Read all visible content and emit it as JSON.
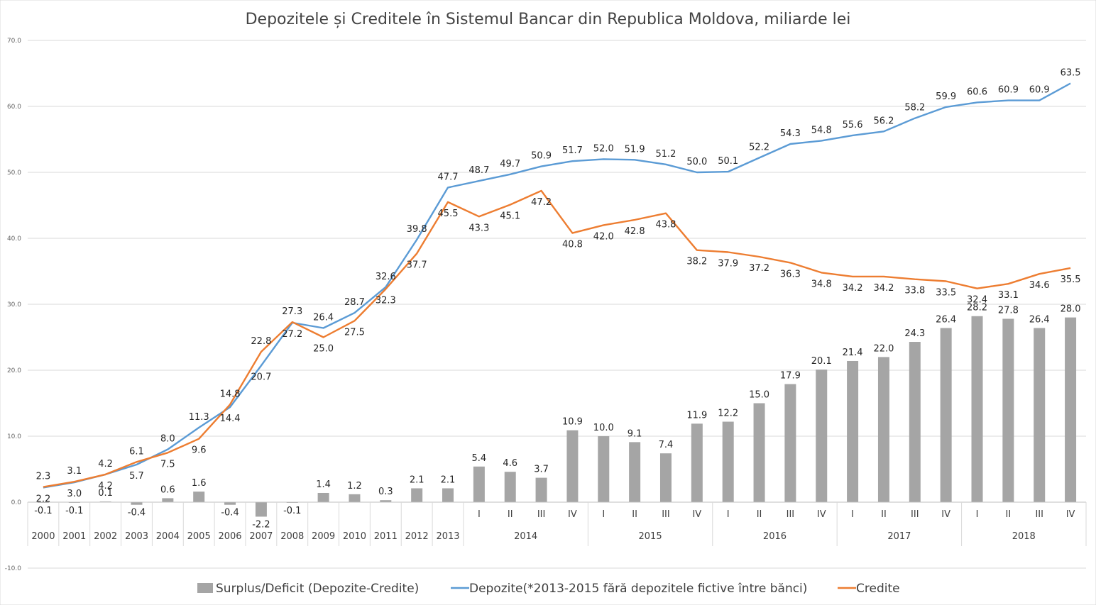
{
  "chart_data": {
    "type": "bar",
    "title": "Depozitele și Creditele în Sistemul Bancar din Republica Moldova, miliarde lei",
    "ylim": [
      -10,
      70
    ],
    "yticks": [
      "-10.0",
      "0.0",
      "10.0",
      "20.0",
      "30.0",
      "40.0",
      "50.0",
      "60.0",
      "70.0"
    ],
    "categories": [
      "2000",
      "2001",
      "2002",
      "2003",
      "2004",
      "2005",
      "2006",
      "2007",
      "2008",
      "2009",
      "2010",
      "2011",
      "2012",
      "2013",
      "I",
      "II",
      "III",
      "IV",
      "I",
      "II",
      "III",
      "IV",
      "I",
      "II",
      "III",
      "IV",
      "I",
      "II",
      "III",
      "IV",
      "I",
      "II",
      "III",
      "IV"
    ],
    "year_groups": [
      {
        "label": "2014",
        "start": 14,
        "end": 17
      },
      {
        "label": "2015",
        "start": 18,
        "end": 21
      },
      {
        "label": "2016",
        "start": 22,
        "end": 25
      },
      {
        "label": "2017",
        "start": 26,
        "end": 29
      },
      {
        "label": "2018",
        "start": 30,
        "end": 33
      }
    ],
    "series": [
      {
        "name": "Surplus/Deficit (Depozite-Credite)",
        "type": "bar",
        "color": "#a5a5a5",
        "values": [
          -0.1,
          -0.1,
          0.1,
          -0.4,
          0.6,
          1.6,
          -0.4,
          -2.2,
          -0.1,
          1.4,
          1.2,
          0.3,
          2.1,
          2.1,
          5.4,
          4.6,
          3.7,
          10.9,
          10.0,
          9.1,
          7.4,
          11.9,
          12.2,
          15.0,
          17.9,
          20.1,
          21.4,
          22.0,
          24.3,
          26.4,
          28.2,
          27.8,
          26.4,
          28.0
        ],
        "labels": [
          "-0.1",
          "-0.1",
          "0.1",
          "-0.4",
          "0.6",
          "1.6",
          "-0.4",
          "-2.2",
          "-0.1",
          "1.4",
          "1.2",
          "0.3",
          "2.1",
          "2.1",
          "5.4",
          "4.6",
          "3.7",
          "10.9",
          "10.0",
          "9.1",
          "7.4",
          "11.9",
          "12.2",
          "15.0",
          "17.9",
          "20.1",
          "21.4",
          "22.0",
          "24.3",
          "26.4",
          "28.2",
          "27.8",
          "26.4",
          "28.0"
        ]
      },
      {
        "name": "Depozite(*2013-2015 fără depozitele fictive între bănci)",
        "type": "line",
        "color": "#5b9bd5",
        "values": [
          2.2,
          3.0,
          4.2,
          5.7,
          8.0,
          11.3,
          14.4,
          20.7,
          27.2,
          26.4,
          28.7,
          32.6,
          39.8,
          47.7,
          48.7,
          49.7,
          50.9,
          51.7,
          52.0,
          51.9,
          51.2,
          50.0,
          50.1,
          52.2,
          54.3,
          54.8,
          55.6,
          56.2,
          58.2,
          59.9,
          60.6,
          60.9,
          60.9,
          63.5
        ],
        "labels": [
          "2.2",
          "3.0",
          "4.2",
          "5.7",
          "8.0",
          "11.3",
          "14.4",
          "20.7",
          "27.2",
          "26.4",
          "28.7",
          "32.6",
          "39.8",
          "47.7",
          "48.7",
          "49.7",
          "50.9",
          "51.7",
          "52.0",
          "51.9",
          "51.2",
          "50.0",
          "50.1",
          "52.2",
          "54.3",
          "54.8",
          "55.6",
          "56.2",
          "58.2",
          "59.9",
          "60.6",
          "60.9",
          "60.9",
          "63.5"
        ]
      },
      {
        "name": "Credite",
        "type": "line",
        "color": "#ed7d31",
        "values": [
          2.3,
          3.1,
          4.2,
          6.1,
          7.5,
          9.6,
          14.8,
          22.8,
          27.3,
          25.0,
          27.5,
          32.3,
          37.7,
          45.5,
          43.3,
          45.1,
          47.2,
          40.8,
          42.0,
          42.8,
          43.8,
          38.2,
          37.9,
          37.2,
          36.3,
          34.8,
          34.2,
          34.2,
          33.8,
          33.5,
          32.4,
          33.1,
          34.6,
          35.5
        ],
        "labels": [
          "2.3",
          "3.1",
          "4.2",
          "6.1",
          "7.5",
          "9.6",
          "14.8",
          "22.8",
          "27.3",
          "25.0",
          "27.5",
          "32.3",
          "37.7",
          "45.5",
          "43.3",
          "45.1",
          "47.2",
          "40.8",
          "42.0",
          "42.8",
          "43.8",
          "38.2",
          "37.9",
          "37.2",
          "36.3",
          "34.8",
          "34.2",
          "34.2",
          "33.8",
          "33.5",
          "32.4",
          "33.1",
          "34.6",
          "35.5"
        ]
      }
    ],
    "grid": true,
    "legend": "bottom"
  }
}
